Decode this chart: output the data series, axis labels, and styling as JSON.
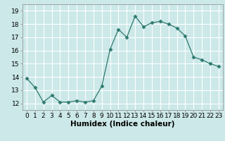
{
  "x": [
    0,
    1,
    2,
    3,
    4,
    5,
    6,
    7,
    8,
    9,
    10,
    11,
    12,
    13,
    14,
    15,
    16,
    17,
    18,
    19,
    20,
    21,
    22,
    23
  ],
  "y": [
    13.9,
    13.2,
    12.1,
    12.6,
    12.1,
    12.1,
    12.2,
    12.1,
    12.2,
    13.3,
    16.1,
    17.6,
    17.0,
    18.6,
    17.8,
    18.1,
    18.2,
    18.0,
    17.7,
    17.1,
    15.5,
    15.3,
    15.0,
    14.8
  ],
  "line_color": "#2d7a6e",
  "marker": "D",
  "marker_size": 2.5,
  "bg_color": "#cce8e8",
  "grid_color": "#ffffff",
  "xlabel": "Humidex (Indice chaleur)",
  "xlabel_fontsize": 7.5,
  "xlim": [
    -0.5,
    23.5
  ],
  "ylim": [
    11.5,
    19.5
  ],
  "yticks": [
    12,
    13,
    14,
    15,
    16,
    17,
    18,
    19
  ],
  "xticks": [
    0,
    1,
    2,
    3,
    4,
    5,
    6,
    7,
    8,
    9,
    10,
    11,
    12,
    13,
    14,
    15,
    16,
    17,
    18,
    19,
    20,
    21,
    22,
    23
  ],
  "tick_fontsize": 6.5
}
